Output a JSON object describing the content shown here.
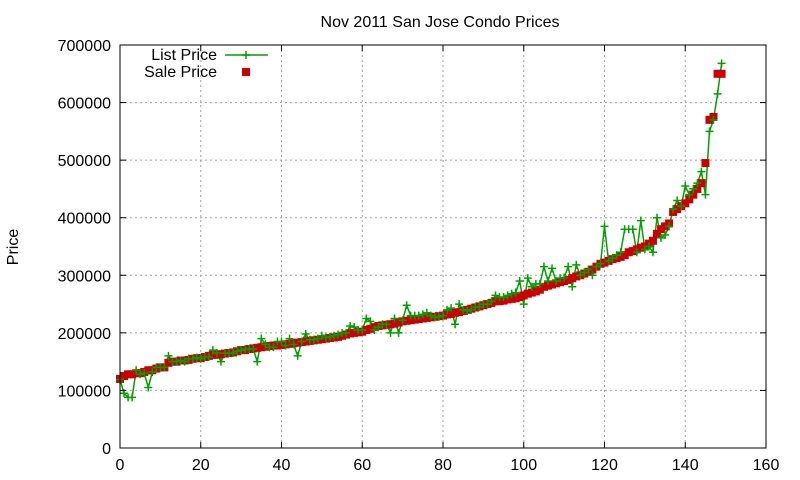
{
  "chart_data": {
    "type": "line",
    "title": "Nov 2011 San Jose Condo Prices",
    "xlabel": "",
    "ylabel": "Price",
    "xlim": [
      0,
      160
    ],
    "ylim": [
      0,
      700000
    ],
    "x_ticks": [
      0,
      20,
      40,
      60,
      80,
      100,
      120,
      140,
      160
    ],
    "y_ticks": [
      0,
      100000,
      200000,
      300000,
      400000,
      500000,
      600000,
      700000
    ],
    "grid": true,
    "legend_position": "top-left",
    "colors": {
      "list": "#00a000",
      "sale": "#cc0000"
    },
    "series": [
      {
        "name": "List Price",
        "style": "line-plus",
        "values": [
          119000,
          95000,
          88000,
          88000,
          135000,
          128000,
          130000,
          105000,
          132000,
          140000,
          140000,
          140000,
          160000,
          150000,
          150000,
          152000,
          150000,
          155000,
          155000,
          157000,
          155000,
          158000,
          158000,
          170000,
          165000,
          150000,
          165000,
          165000,
          165000,
          168000,
          170000,
          172000,
          172000,
          172000,
          150000,
          190000,
          180000,
          175000,
          175000,
          185000,
          185000,
          178000,
          190000,
          180000,
          160000,
          185000,
          198000,
          188000,
          188000,
          190000,
          195000,
          192000,
          193000,
          195000,
          197000,
          200000,
          200000,
          212000,
          210000,
          205000,
          205000,
          225000,
          220000,
          205000,
          210000,
          215000,
          215000,
          200000,
          225000,
          200000,
          222000,
          248000,
          230000,
          230000,
          230000,
          232000,
          235000,
          230000,
          227000,
          228000,
          230000,
          240000,
          243000,
          215000,
          250000,
          240000,
          238000,
          240000,
          245000,
          245000,
          250000,
          250000,
          255000,
          265000,
          262000,
          262000,
          265000,
          268000,
          270000,
          290000,
          250000,
          295000,
          280000,
          285000,
          285000,
          315000,
          290000,
          312000,
          290000,
          295000,
          296000,
          315000,
          280000,
          318000,
          300000,
          305000,
          310000,
          300000,
          315000,
          320000,
          385000,
          325000,
          330000,
          335000,
          340000,
          380000,
          380000,
          380000,
          340000,
          395000,
          345000,
          350000,
          340000,
          400000,
          365000,
          370000,
          385000,
          415000,
          430000,
          420000,
          455000,
          440000,
          450000,
          460000,
          480000,
          440000,
          550000,
          570000,
          615000,
          668000
        ]
      },
      {
        "name": "Sale Price",
        "style": "points-square",
        "values": [
          120000,
          125000,
          128000,
          128000,
          130000,
          130000,
          132000,
          135000,
          135000,
          138000,
          140000,
          140000,
          148000,
          150000,
          150000,
          152000,
          152000,
          153000,
          155000,
          156000,
          156000,
          158000,
          160000,
          162000,
          162000,
          163000,
          164000,
          165000,
          166000,
          168000,
          170000,
          170000,
          172000,
          173000,
          174000,
          175000,
          176000,
          177000,
          178000,
          178000,
          179000,
          180000,
          181000,
          182000,
          183000,
          184000,
          185000,
          186000,
          187000,
          188000,
          189000,
          190000,
          191000,
          192000,
          193000,
          195000,
          197000,
          199000,
          200000,
          201000,
          202000,
          205000,
          207000,
          210000,
          212000,
          213000,
          214000,
          215000,
          216000,
          218000,
          220000,
          221000,
          222000,
          223000,
          224000,
          225000,
          226000,
          227000,
          228000,
          229000,
          230000,
          232000,
          233000,
          235000,
          236000,
          238000,
          240000,
          242000,
          244000,
          246000,
          248000,
          250000,
          252000,
          255000,
          255000,
          256000,
          258000,
          259000,
          260000,
          262000,
          265000,
          268000,
          270000,
          272000,
          275000,
          280000,
          282000,
          284000,
          286000,
          288000,
          290000,
          292000,
          295000,
          298000,
          300000,
          303000,
          306000,
          310000,
          315000,
          320000,
          322000,
          325000,
          328000,
          330000,
          332000,
          335000,
          340000,
          342000,
          345000,
          348000,
          350000,
          355000,
          360000,
          372000,
          380000,
          385000,
          390000,
          410000,
          415000,
          420000,
          425000,
          432000,
          440000,
          450000,
          460000,
          495000,
          570000,
          575000,
          650000,
          650000
        ]
      }
    ],
    "legend": {
      "list_label": "List Price",
      "sale_label": "Sale Price"
    }
  }
}
